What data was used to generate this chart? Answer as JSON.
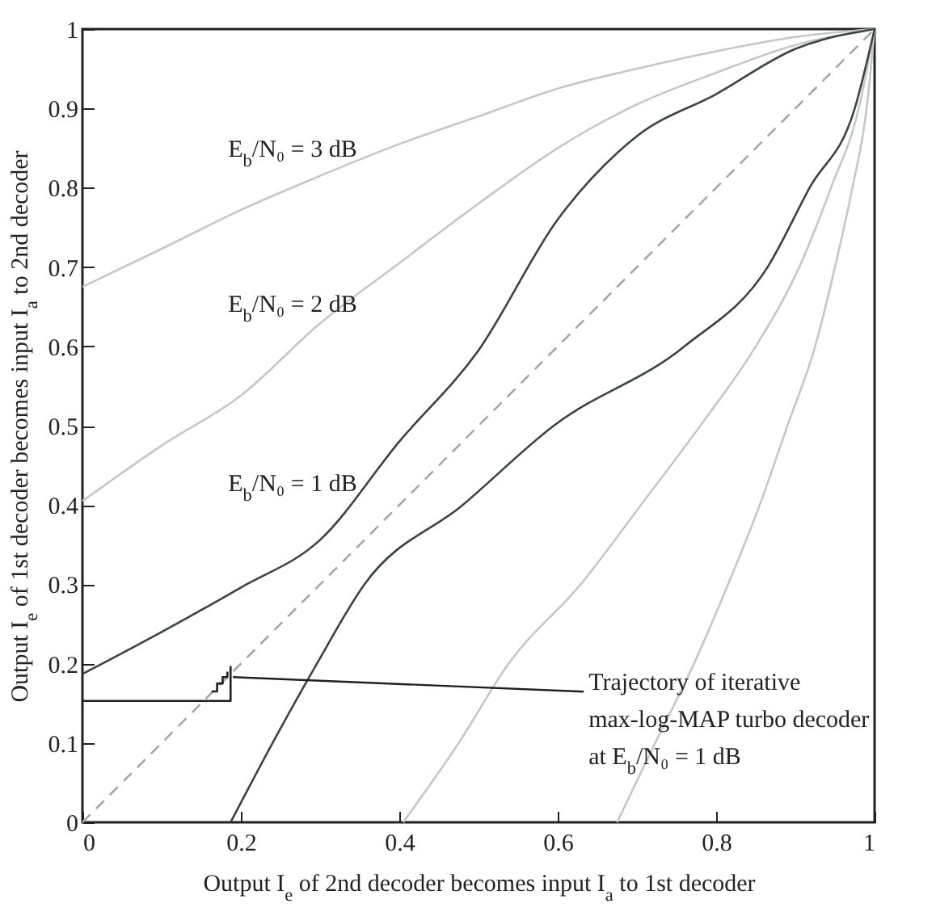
{
  "chart_data": {
    "type": "line",
    "xlabel": "Output I$_{e}$ of 2nd decoder becomes input I$_{a}$ to 1st decoder",
    "ylabel": "Output I$_{e}$ of 1st decoder becomes input I$_{a}$ to 2nd decoder",
    "xlim": [
      0,
      1
    ],
    "ylim": [
      0,
      1
    ],
    "xticks": [
      0,
      0.2,
      0.4,
      0.6,
      0.8,
      1
    ],
    "yticks": [
      0,
      0.1,
      0.2,
      0.3,
      0.4,
      0.5,
      0.6,
      0.7,
      0.8,
      0.9,
      1
    ],
    "annotations": [
      "E$_{b}$/N₀ = 3 dB",
      "E$_{b}$/N₀ = 2 dB",
      "E$_{b}$/N₀ = 1 dB",
      {
        "text": "Trajectory of iterative\nmax-log-MAP turbo decoder\nat E$_{b}$/N₀ = 1 dB",
        "x": 0.19,
        "y": 0.183
      }
    ],
    "series": [
      {
        "color": "#a4a8ac",
        "line_style": "dashed",
        "x": [
          0,
          1
        ],
        "values": [
          0,
          1
        ]
      },
      {
        "color": "#c4c8cc",
        "x": [
          0,
          0.1,
          0.2,
          0.3,
          0.4,
          0.5,
          0.6,
          0.7,
          0.8,
          0.9,
          1
        ],
        "values": [
          0.675,
          0.723,
          0.772,
          0.815,
          0.855,
          0.89,
          0.925,
          0.95,
          0.972,
          0.99,
          1
        ]
      },
      {
        "color": "#c4c8cc",
        "x": [
          0,
          0.1,
          0.2,
          0.3,
          0.4,
          0.5,
          0.6,
          0.7,
          0.8,
          0.9,
          1
        ],
        "values": [
          0.405,
          0.475,
          0.538,
          0.629,
          0.705,
          0.78,
          0.85,
          0.905,
          0.945,
          0.98,
          1
        ]
      },
      {
        "color": "#3c4440",
        "x": [
          0,
          0.1,
          0.2,
          0.3,
          0.4,
          0.5,
          0.6,
          0.7,
          0.8,
          0.9,
          1
        ],
        "values": [
          0.187,
          0.24,
          0.296,
          0.356,
          0.48,
          0.595,
          0.76,
          0.865,
          0.918,
          0.975,
          1
        ]
      },
      {
        "color": "#c4c8cc",
        "x": [
          0.675,
          0.723,
          0.772,
          0.815,
          0.855,
          0.89,
          0.925,
          0.95,
          0.972,
          0.99,
          1
        ],
        "values": [
          0,
          0.1,
          0.2,
          0.3,
          0.4,
          0.5,
          0.6,
          0.7,
          0.8,
          0.9,
          1
        ]
      },
      {
        "color": "#c4c8cc",
        "x": [
          0.405,
          0.475,
          0.538,
          0.629,
          0.705,
          0.78,
          0.85,
          0.905,
          0.945,
          0.98,
          1
        ],
        "values": [
          0,
          0.1,
          0.2,
          0.3,
          0.4,
          0.5,
          0.6,
          0.7,
          0.8,
          0.9,
          1
        ]
      },
      {
        "color": "#3c4440",
        "x": [
          0.187,
          0.24,
          0.296,
          0.356,
          0.48,
          0.595,
          0.76,
          0.865,
          0.918,
          0.975,
          1
        ],
        "values": [
          0,
          0.1,
          0.2,
          0.3,
          0.4,
          0.5,
          0.6,
          0.7,
          0.8,
          0.9,
          1
        ]
      },
      {
        "color": "#202020",
        "x": [
          0,
          0.187,
          0.187
        ],
        "values": [
          0.153,
          0.153,
          0.197
        ]
      },
      {
        "color": "#202020",
        "x": [
          0.163,
          0.17,
          0.17,
          0.177,
          0.177,
          0.183,
          0.183
        ],
        "values": [
          0.165,
          0.165,
          0.175,
          0.175,
          0.183,
          0.183,
          0.19
        ]
      }
    ]
  }
}
